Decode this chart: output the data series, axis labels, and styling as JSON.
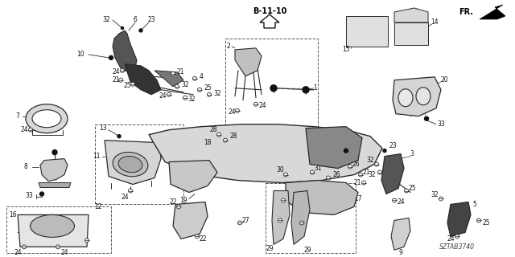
{
  "bg_color": "#ffffff",
  "diagram_code": "SZTAB3740",
  "section_label": "B-11-10",
  "fr_label": "FR.",
  "figsize": [
    6.4,
    3.2
  ],
  "dpi": 100,
  "line_color": "#2a2a2a",
  "text_color": "#111111",
  "lw_main": 0.8,
  "lw_thin": 0.5,
  "fs_label": 5.5,
  "fs_header": 7.0
}
